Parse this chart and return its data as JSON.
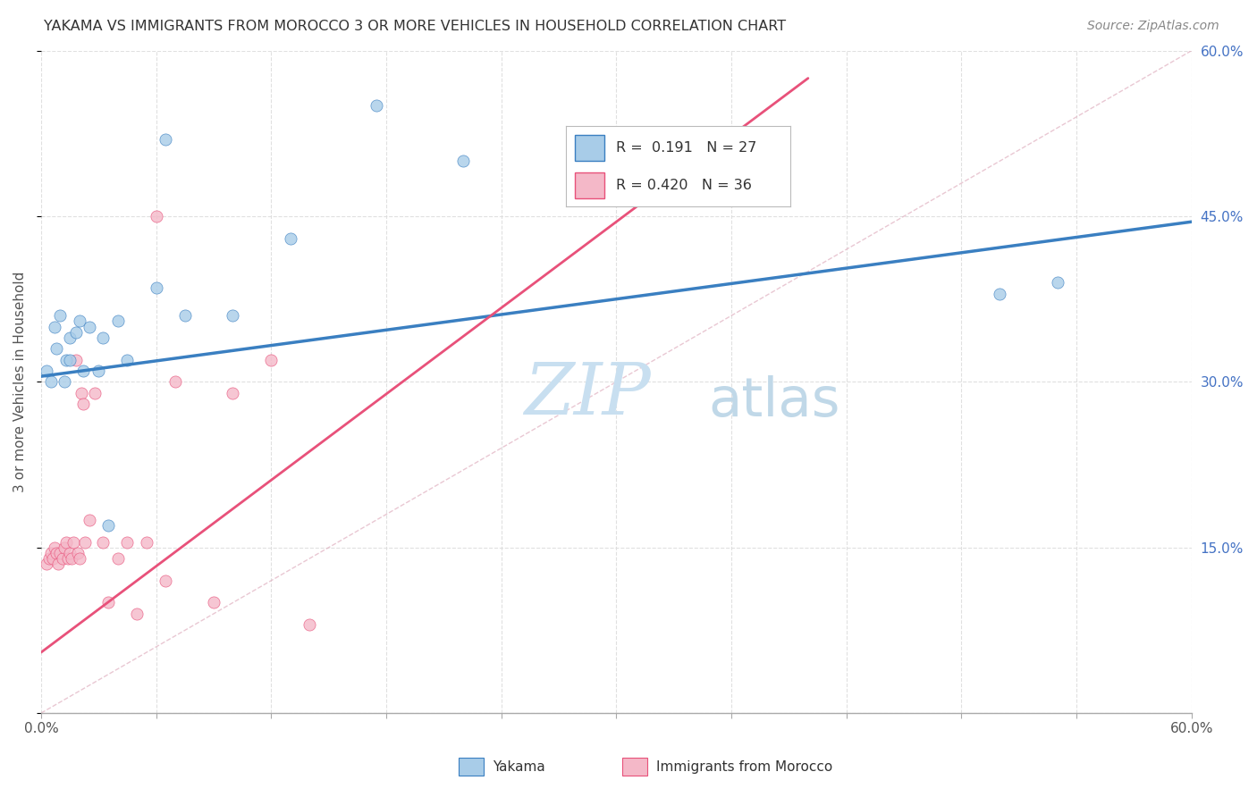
{
  "title": "YAKAMA VS IMMIGRANTS FROM MOROCCO 3 OR MORE VEHICLES IN HOUSEHOLD CORRELATION CHART",
  "source": "Source: ZipAtlas.com",
  "ylabel": "3 or more Vehicles in Household",
  "xlim": [
    0.0,
    0.6
  ],
  "ylim": [
    0.0,
    0.6
  ],
  "xticks": [
    0.0,
    0.06,
    0.12,
    0.18,
    0.24,
    0.3,
    0.36,
    0.42,
    0.48,
    0.54,
    0.6
  ],
  "yticks": [
    0.0,
    0.15,
    0.3,
    0.45,
    0.6
  ],
  "xticklabels_show": [
    "0.0%",
    "60.0%"
  ],
  "yticklabels_right": [
    "",
    "15.0%",
    "30.0%",
    "45.0%",
    "60.0%"
  ],
  "legend_label1": "Yakama",
  "legend_label2": "Immigrants from Morocco",
  "R1": "0.191",
  "N1": "27",
  "R2": "0.420",
  "N2": "36",
  "color1": "#a8cce8",
  "color2": "#f4b8c8",
  "line_color1": "#3a7fc1",
  "line_color2": "#e8517a",
  "diagonal_color": "#cccccc",
  "background_color": "#ffffff",
  "grid_color": "#dddddd",
  "yakama_x": [
    0.003,
    0.005,
    0.007,
    0.008,
    0.01,
    0.012,
    0.013,
    0.015,
    0.015,
    0.018,
    0.02,
    0.022,
    0.025,
    0.03,
    0.032,
    0.035,
    0.04,
    0.045,
    0.06,
    0.065,
    0.075,
    0.1,
    0.13,
    0.175,
    0.22,
    0.5,
    0.53
  ],
  "yakama_y": [
    0.31,
    0.3,
    0.35,
    0.33,
    0.36,
    0.3,
    0.32,
    0.34,
    0.32,
    0.345,
    0.355,
    0.31,
    0.35,
    0.31,
    0.34,
    0.17,
    0.355,
    0.32,
    0.385,
    0.52,
    0.36,
    0.36,
    0.43,
    0.55,
    0.5,
    0.38,
    0.39
  ],
  "morocco_x": [
    0.003,
    0.004,
    0.005,
    0.006,
    0.007,
    0.008,
    0.009,
    0.01,
    0.011,
    0.012,
    0.013,
    0.014,
    0.015,
    0.016,
    0.017,
    0.018,
    0.019,
    0.02,
    0.021,
    0.022,
    0.023,
    0.025,
    0.028,
    0.032,
    0.035,
    0.04,
    0.045,
    0.05,
    0.055,
    0.06,
    0.065,
    0.07,
    0.09,
    0.1,
    0.12,
    0.14
  ],
  "morocco_y": [
    0.135,
    0.14,
    0.145,
    0.14,
    0.15,
    0.145,
    0.135,
    0.145,
    0.14,
    0.15,
    0.155,
    0.14,
    0.145,
    0.14,
    0.155,
    0.32,
    0.145,
    0.14,
    0.29,
    0.28,
    0.155,
    0.175,
    0.29,
    0.155,
    0.1,
    0.14,
    0.155,
    0.09,
    0.155,
    0.45,
    0.12,
    0.3,
    0.1,
    0.29,
    0.32,
    0.08
  ],
  "watermark_zip": "ZIP",
  "watermark_atlas": "atlas",
  "watermark_color_zip": "#c8dff0",
  "watermark_color_atlas": "#c0d8e8",
  "figsize": [
    14.06,
    8.92
  ],
  "dpi": 100,
  "blue_line_x0": 0.0,
  "blue_line_y0": 0.305,
  "blue_line_x1": 0.6,
  "blue_line_y1": 0.445,
  "pink_line_x0": 0.0,
  "pink_line_y0": 0.055,
  "pink_line_x1": 0.3,
  "pink_line_y1": 0.445
}
